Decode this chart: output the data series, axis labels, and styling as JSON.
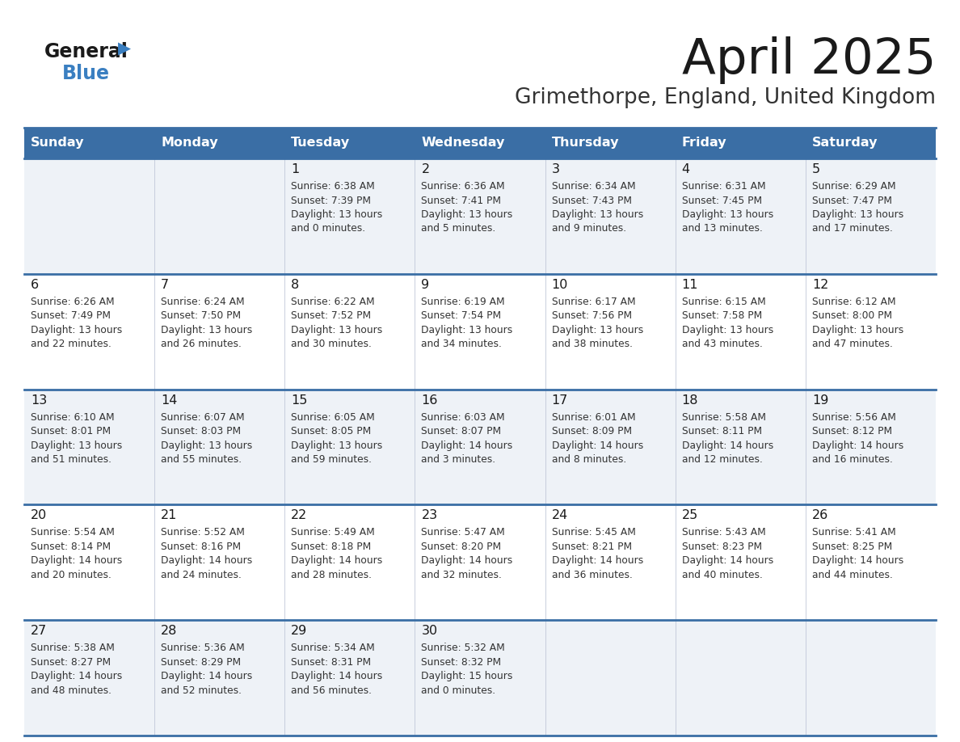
{
  "title": "April 2025",
  "subtitle": "Grimethorpe, England, United Kingdom",
  "days_of_week": [
    "Sunday",
    "Monday",
    "Tuesday",
    "Wednesday",
    "Thursday",
    "Friday",
    "Saturday"
  ],
  "header_bg": "#3a6ea5",
  "header_text": "#ffffff",
  "row_bg_light": "#eef2f7",
  "row_bg_white": "#ffffff",
  "row_divider": "#3a6ea5",
  "title_color": "#1a1a1a",
  "subtitle_color": "#333333",
  "day_number_color": "#1a1a1a",
  "cell_text_color": "#333333",
  "logo_general_color": "#1a1a1a",
  "logo_blue_color": "#3a7fc1",
  "weeks": [
    [
      {
        "day": "",
        "info": ""
      },
      {
        "day": "",
        "info": ""
      },
      {
        "day": "1",
        "info": "Sunrise: 6:38 AM\nSunset: 7:39 PM\nDaylight: 13 hours\nand 0 minutes."
      },
      {
        "day": "2",
        "info": "Sunrise: 6:36 AM\nSunset: 7:41 PM\nDaylight: 13 hours\nand 5 minutes."
      },
      {
        "day": "3",
        "info": "Sunrise: 6:34 AM\nSunset: 7:43 PM\nDaylight: 13 hours\nand 9 minutes."
      },
      {
        "day": "4",
        "info": "Sunrise: 6:31 AM\nSunset: 7:45 PM\nDaylight: 13 hours\nand 13 minutes."
      },
      {
        "day": "5",
        "info": "Sunrise: 6:29 AM\nSunset: 7:47 PM\nDaylight: 13 hours\nand 17 minutes."
      }
    ],
    [
      {
        "day": "6",
        "info": "Sunrise: 6:26 AM\nSunset: 7:49 PM\nDaylight: 13 hours\nand 22 minutes."
      },
      {
        "day": "7",
        "info": "Sunrise: 6:24 AM\nSunset: 7:50 PM\nDaylight: 13 hours\nand 26 minutes."
      },
      {
        "day": "8",
        "info": "Sunrise: 6:22 AM\nSunset: 7:52 PM\nDaylight: 13 hours\nand 30 minutes."
      },
      {
        "day": "9",
        "info": "Sunrise: 6:19 AM\nSunset: 7:54 PM\nDaylight: 13 hours\nand 34 minutes."
      },
      {
        "day": "10",
        "info": "Sunrise: 6:17 AM\nSunset: 7:56 PM\nDaylight: 13 hours\nand 38 minutes."
      },
      {
        "day": "11",
        "info": "Sunrise: 6:15 AM\nSunset: 7:58 PM\nDaylight: 13 hours\nand 43 minutes."
      },
      {
        "day": "12",
        "info": "Sunrise: 6:12 AM\nSunset: 8:00 PM\nDaylight: 13 hours\nand 47 minutes."
      }
    ],
    [
      {
        "day": "13",
        "info": "Sunrise: 6:10 AM\nSunset: 8:01 PM\nDaylight: 13 hours\nand 51 minutes."
      },
      {
        "day": "14",
        "info": "Sunrise: 6:07 AM\nSunset: 8:03 PM\nDaylight: 13 hours\nand 55 minutes."
      },
      {
        "day": "15",
        "info": "Sunrise: 6:05 AM\nSunset: 8:05 PM\nDaylight: 13 hours\nand 59 minutes."
      },
      {
        "day": "16",
        "info": "Sunrise: 6:03 AM\nSunset: 8:07 PM\nDaylight: 14 hours\nand 3 minutes."
      },
      {
        "day": "17",
        "info": "Sunrise: 6:01 AM\nSunset: 8:09 PM\nDaylight: 14 hours\nand 8 minutes."
      },
      {
        "day": "18",
        "info": "Sunrise: 5:58 AM\nSunset: 8:11 PM\nDaylight: 14 hours\nand 12 minutes."
      },
      {
        "day": "19",
        "info": "Sunrise: 5:56 AM\nSunset: 8:12 PM\nDaylight: 14 hours\nand 16 minutes."
      }
    ],
    [
      {
        "day": "20",
        "info": "Sunrise: 5:54 AM\nSunset: 8:14 PM\nDaylight: 14 hours\nand 20 minutes."
      },
      {
        "day": "21",
        "info": "Sunrise: 5:52 AM\nSunset: 8:16 PM\nDaylight: 14 hours\nand 24 minutes."
      },
      {
        "day": "22",
        "info": "Sunrise: 5:49 AM\nSunset: 8:18 PM\nDaylight: 14 hours\nand 28 minutes."
      },
      {
        "day": "23",
        "info": "Sunrise: 5:47 AM\nSunset: 8:20 PM\nDaylight: 14 hours\nand 32 minutes."
      },
      {
        "day": "24",
        "info": "Sunrise: 5:45 AM\nSunset: 8:21 PM\nDaylight: 14 hours\nand 36 minutes."
      },
      {
        "day": "25",
        "info": "Sunrise: 5:43 AM\nSunset: 8:23 PM\nDaylight: 14 hours\nand 40 minutes."
      },
      {
        "day": "26",
        "info": "Sunrise: 5:41 AM\nSunset: 8:25 PM\nDaylight: 14 hours\nand 44 minutes."
      }
    ],
    [
      {
        "day": "27",
        "info": "Sunrise: 5:38 AM\nSunset: 8:27 PM\nDaylight: 14 hours\nand 48 minutes."
      },
      {
        "day": "28",
        "info": "Sunrise: 5:36 AM\nSunset: 8:29 PM\nDaylight: 14 hours\nand 52 minutes."
      },
      {
        "day": "29",
        "info": "Sunrise: 5:34 AM\nSunset: 8:31 PM\nDaylight: 14 hours\nand 56 minutes."
      },
      {
        "day": "30",
        "info": "Sunrise: 5:32 AM\nSunset: 8:32 PM\nDaylight: 15 hours\nand 0 minutes."
      },
      {
        "day": "",
        "info": ""
      },
      {
        "day": "",
        "info": ""
      },
      {
        "day": "",
        "info": ""
      }
    ]
  ]
}
